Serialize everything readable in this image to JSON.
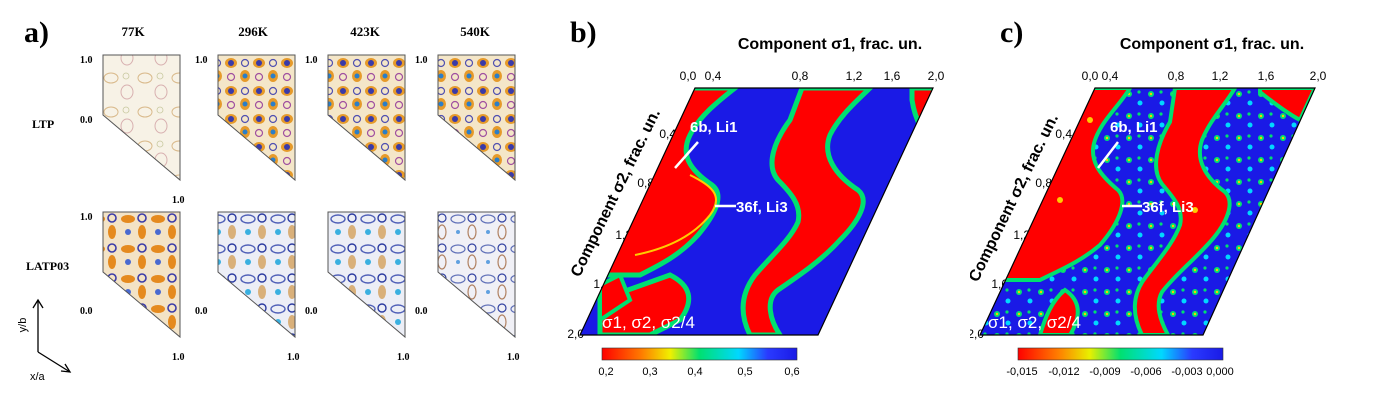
{
  "panel_a": {
    "label": "a)",
    "temperatures": [
      "77K",
      "296K",
      "423K",
      "540K"
    ],
    "rows": [
      "LTP",
      "LATP03"
    ],
    "axis_min": "0.0",
    "axis_max": "1.0",
    "y_axis": "y/b",
    "x_axis": "x/a"
  },
  "panel_b": {
    "label": "b)",
    "x_title": "Component σ1, frac. un.",
    "y_title": "Component σ2, frac. un.",
    "x_ticks": [
      "0,0",
      "0,4",
      "0,8",
      "1,2",
      "1,6",
      "2,0"
    ],
    "y_ticks": [
      "0,0",
      "0,4",
      "0,8",
      "1,2",
      "1,6",
      "2,0"
    ],
    "annotations": [
      "6b, Li1",
      "36f, Li3"
    ],
    "section": "σ1, σ2, σ2/4",
    "colorbar_ticks": [
      "0,2",
      "0,3",
      "0,4",
      "0,5",
      "0,6"
    ],
    "colors": {
      "low": "#ff0000",
      "high": "#1a1ae6",
      "mid": "#00e070"
    }
  },
  "panel_c": {
    "label": "c)",
    "x_title": "Component σ1, frac. un.",
    "y_title": "Component σ2, frac. un.",
    "x_ticks": [
      "0,0",
      "0,4",
      "0,8",
      "1,2",
      "1,6",
      "2,0"
    ],
    "y_ticks": [
      "0,0",
      "0,4",
      "0,8",
      "1,2",
      "1,6",
      "2,0"
    ],
    "annotations": [
      "6b, Li1",
      "36f, Li3"
    ],
    "section": "σ1, σ2, σ2/4",
    "colorbar_ticks": [
      "-0,015",
      "-0,012",
      "-0,009",
      "-0,006",
      "-0,003",
      "0,000"
    ],
    "colors": {
      "low": "#ff0000",
      "high": "#1a1ae6",
      "mid": "#00e070"
    }
  }
}
